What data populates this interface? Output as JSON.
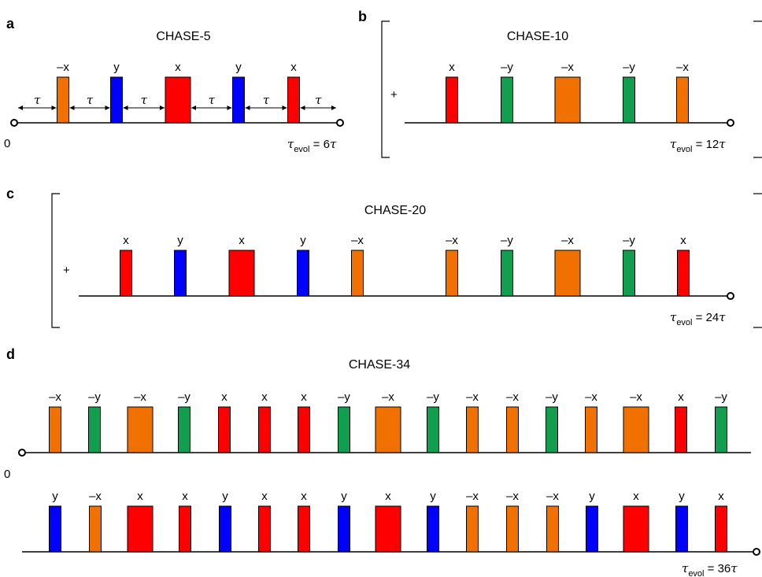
{
  "colors": {
    "x": "#ff0000",
    "-x": "#f07000",
    "y": "#0000ff",
    "-y": "#119e4e"
  },
  "panels": [
    {
      "letter": "a",
      "title": "CHASE-5",
      "start_label": "0",
      "end_label": {
        "tau": "τ",
        "sub": "evol",
        "rest": " = 6",
        "tau2": "τ"
      },
      "tau_label": "τ",
      "rows": [
        [
          {
            "label": "–x",
            "phase": "-x",
            "w": "n"
          },
          {
            "label": "y",
            "phase": "y",
            "w": "n"
          },
          {
            "label": "x",
            "phase": "x",
            "w": "w"
          },
          {
            "label": "y",
            "phase": "y",
            "w": "n"
          },
          {
            "label": "x",
            "phase": "x",
            "w": "n"
          }
        ]
      ]
    },
    {
      "letter": "b",
      "title": "CHASE-10",
      "plus": "+",
      "end_label": {
        "tau": "τ",
        "sub": "evol",
        "rest": " = 12",
        "tau2": "τ"
      },
      "rows": [
        [
          {
            "label": "x",
            "phase": "x",
            "w": "n"
          },
          {
            "label": "–y",
            "phase": "-y",
            "w": "n"
          },
          {
            "label": "–x",
            "phase": "-x",
            "w": "w"
          },
          {
            "label": "–y",
            "phase": "-y",
            "w": "n"
          },
          {
            "label": "–x",
            "phase": "-x",
            "w": "n"
          }
        ]
      ]
    },
    {
      "letter": "c",
      "title": "CHASE-20",
      "plus": "+",
      "end_label": {
        "tau": "τ",
        "sub": "evol",
        "rest": " = 24",
        "tau2": "τ"
      },
      "rows": [
        [
          {
            "label": "x",
            "phase": "x",
            "w": "n"
          },
          {
            "label": "y",
            "phase": "y",
            "w": "n"
          },
          {
            "label": "x",
            "phase": "x",
            "w": "w"
          },
          {
            "label": "y",
            "phase": "y",
            "w": "n"
          },
          {
            "label": "–x",
            "phase": "-x",
            "w": "n"
          },
          {
            "label": "–x",
            "phase": "-x",
            "w": "n"
          },
          {
            "label": "–y",
            "phase": "-y",
            "w": "n"
          },
          {
            "label": "–x",
            "phase": "-x",
            "w": "w"
          },
          {
            "label": "–y",
            "phase": "-y",
            "w": "n"
          },
          {
            "label": "x",
            "phase": "x",
            "w": "n"
          }
        ]
      ]
    },
    {
      "letter": "d",
      "title": "CHASE-34",
      "start_label": "0",
      "end_label": {
        "tau": "τ",
        "sub": "evol",
        "rest": " = 36",
        "tau2": "τ"
      },
      "rows": [
        [
          {
            "label": "–x",
            "phase": "-x",
            "w": "n"
          },
          {
            "label": "–y",
            "phase": "-y",
            "w": "n"
          },
          {
            "label": "–x",
            "phase": "-x",
            "w": "w"
          },
          {
            "label": "–y",
            "phase": "-y",
            "w": "n"
          },
          {
            "label": "x",
            "phase": "x",
            "w": "n"
          },
          {
            "label": "x",
            "phase": "x",
            "w": "n"
          },
          {
            "label": "x",
            "phase": "x",
            "w": "n"
          },
          {
            "label": "–y",
            "phase": "-y",
            "w": "n"
          },
          {
            "label": "–x",
            "phase": "-x",
            "w": "w"
          },
          {
            "label": "–y",
            "phase": "-y",
            "w": "n"
          },
          {
            "label": "–x",
            "phase": "-x",
            "w": "n"
          },
          {
            "label": "–x",
            "phase": "-x",
            "w": "n"
          },
          {
            "label": "–y",
            "phase": "-y",
            "w": "n"
          },
          {
            "label": "–x",
            "phase": "-x",
            "w": "n"
          },
          {
            "label": "–x",
            "phase": "-x",
            "w": "w"
          },
          {
            "label": "x",
            "phase": "x",
            "w": "n"
          },
          {
            "label": "–y",
            "phase": "-y",
            "w": "n"
          }
        ],
        [
          {
            "label": "y",
            "phase": "y",
            "w": "n"
          },
          {
            "label": "–x",
            "phase": "-x",
            "w": "n"
          },
          {
            "label": "x",
            "phase": "x",
            "w": "w"
          },
          {
            "label": "x",
            "phase": "x",
            "w": "n"
          },
          {
            "label": "y",
            "phase": "y",
            "w": "n"
          },
          {
            "label": "x",
            "phase": "x",
            "w": "n"
          },
          {
            "label": "x",
            "phase": "x",
            "w": "n"
          },
          {
            "label": "y",
            "phase": "y",
            "w": "n"
          },
          {
            "label": "x",
            "phase": "x",
            "w": "w"
          },
          {
            "label": "y",
            "phase": "y",
            "w": "n"
          },
          {
            "label": "–x",
            "phase": "-x",
            "w": "n"
          },
          {
            "label": "–x",
            "phase": "-x",
            "w": "n"
          },
          {
            "label": "–x",
            "phase": "-x",
            "w": "n"
          },
          {
            "label": "y",
            "phase": "y",
            "w": "n"
          },
          {
            "label": "x",
            "phase": "x",
            "w": "w"
          },
          {
            "label": "y",
            "phase": "y",
            "w": "n"
          },
          {
            "label": "x",
            "phase": "x",
            "w": "n"
          }
        ]
      ]
    }
  ]
}
